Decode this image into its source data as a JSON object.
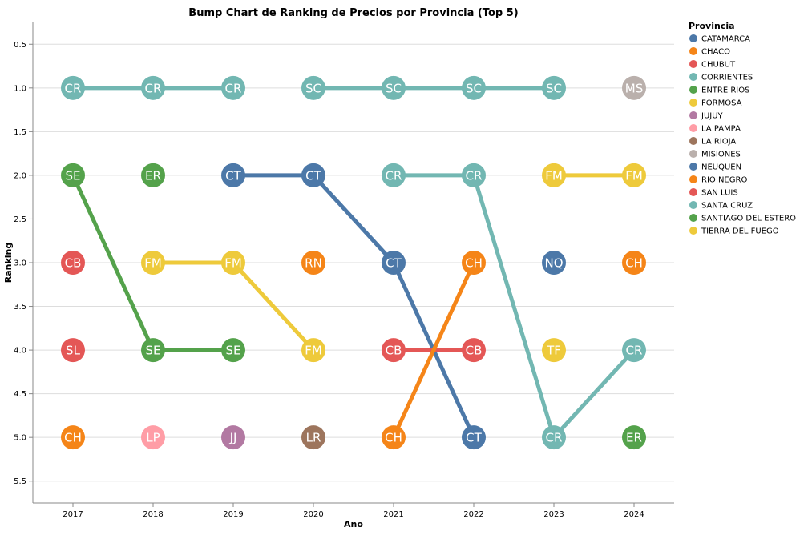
{
  "chart_data": {
    "type": "line",
    "title": "Bump Chart de Ranking de Precios por Provincia (Top 5)",
    "xlabel": "Año",
    "ylabel": "Ranking",
    "x": [
      "2017",
      "2018",
      "2019",
      "2020",
      "2021",
      "2022",
      "2023",
      "2024"
    ],
    "yticks": [
      "0.5",
      "1.0",
      "1.5",
      "2.0",
      "2.5",
      "3.0",
      "3.5",
      "4.0",
      "4.5",
      "5.0",
      "5.5"
    ],
    "ylim": [
      0.25,
      5.75
    ],
    "y_reversed": true,
    "grid": true,
    "legend": {
      "title": "Provincia",
      "placement": "right",
      "items": [
        {
          "name": "CATAMARCA",
          "color": "#4c78a8"
        },
        {
          "name": "CHACO",
          "color": "#f58518"
        },
        {
          "name": "CHUBUT",
          "color": "#e45756"
        },
        {
          "name": "CORRIENTES",
          "color": "#72b7b2"
        },
        {
          "name": "ENTRE RIOS",
          "color": "#54a24b"
        },
        {
          "name": "FORMOSA",
          "color": "#eeca3b"
        },
        {
          "name": "JUJUY",
          "color": "#b279a2"
        },
        {
          "name": "LA PAMPA",
          "color": "#ff9da6"
        },
        {
          "name": "LA RIOJA",
          "color": "#9d755d"
        },
        {
          "name": "MISIONES",
          "color": "#bab0ac"
        },
        {
          "name": "NEUQUEN",
          "color": "#4c78a8"
        },
        {
          "name": "RIO NEGRO",
          "color": "#f58518"
        },
        {
          "name": "SAN LUIS",
          "color": "#e45756"
        },
        {
          "name": "SANTA CRUZ",
          "color": "#72b7b2"
        },
        {
          "name": "SANTIAGO DEL ESTERO",
          "color": "#54a24b"
        },
        {
          "name": "TIERRA DEL FUEGO",
          "color": "#eeca3b"
        }
      ]
    },
    "points": [
      {
        "x": "2017",
        "rank": 1,
        "label": "CR",
        "color": "#72b7b2"
      },
      {
        "x": "2017",
        "rank": 2,
        "label": "SE",
        "color": "#54a24b"
      },
      {
        "x": "2017",
        "rank": 3,
        "label": "CB",
        "color": "#e45756"
      },
      {
        "x": "2017",
        "rank": 4,
        "label": "SL",
        "color": "#e45756"
      },
      {
        "x": "2017",
        "rank": 5,
        "label": "CH",
        "color": "#f58518"
      },
      {
        "x": "2018",
        "rank": 1,
        "label": "CR",
        "color": "#72b7b2"
      },
      {
        "x": "2018",
        "rank": 2,
        "label": "ER",
        "color": "#54a24b"
      },
      {
        "x": "2018",
        "rank": 3,
        "label": "FM",
        "color": "#eeca3b"
      },
      {
        "x": "2018",
        "rank": 4,
        "label": "SE",
        "color": "#54a24b"
      },
      {
        "x": "2018",
        "rank": 5,
        "label": "LP",
        "color": "#ff9da6"
      },
      {
        "x": "2019",
        "rank": 1,
        "label": "CR",
        "color": "#72b7b2"
      },
      {
        "x": "2019",
        "rank": 2,
        "label": "CT",
        "color": "#4c78a8"
      },
      {
        "x": "2019",
        "rank": 3,
        "label": "FM",
        "color": "#eeca3b"
      },
      {
        "x": "2019",
        "rank": 4,
        "label": "SE",
        "color": "#54a24b"
      },
      {
        "x": "2019",
        "rank": 5,
        "label": "JJ",
        "color": "#b279a2"
      },
      {
        "x": "2020",
        "rank": 1,
        "label": "SC",
        "color": "#72b7b2"
      },
      {
        "x": "2020",
        "rank": 2,
        "label": "CT",
        "color": "#4c78a8"
      },
      {
        "x": "2020",
        "rank": 3,
        "label": "RN",
        "color": "#f58518"
      },
      {
        "x": "2020",
        "rank": 4,
        "label": "FM",
        "color": "#eeca3b"
      },
      {
        "x": "2020",
        "rank": 5,
        "label": "LR",
        "color": "#9d755d"
      },
      {
        "x": "2021",
        "rank": 1,
        "label": "SC",
        "color": "#72b7b2"
      },
      {
        "x": "2021",
        "rank": 2,
        "label": "CR",
        "color": "#72b7b2"
      },
      {
        "x": "2021",
        "rank": 3,
        "label": "CT",
        "color": "#4c78a8"
      },
      {
        "x": "2021",
        "rank": 4,
        "label": "CB",
        "color": "#e45756"
      },
      {
        "x": "2021",
        "rank": 5,
        "label": "CH",
        "color": "#f58518"
      },
      {
        "x": "2022",
        "rank": 1,
        "label": "SC",
        "color": "#72b7b2"
      },
      {
        "x": "2022",
        "rank": 2,
        "label": "CR",
        "color": "#72b7b2"
      },
      {
        "x": "2022",
        "rank": 3,
        "label": "CH",
        "color": "#f58518"
      },
      {
        "x": "2022",
        "rank": 4,
        "label": "CB",
        "color": "#e45756"
      },
      {
        "x": "2022",
        "rank": 5,
        "label": "CT",
        "color": "#4c78a8"
      },
      {
        "x": "2023",
        "rank": 1,
        "label": "SC",
        "color": "#72b7b2"
      },
      {
        "x": "2023",
        "rank": 2,
        "label": "FM",
        "color": "#eeca3b"
      },
      {
        "x": "2023",
        "rank": 3,
        "label": "NQ",
        "color": "#4c78a8"
      },
      {
        "x": "2023",
        "rank": 4,
        "label": "TF",
        "color": "#eeca3b"
      },
      {
        "x": "2023",
        "rank": 5,
        "label": "CR",
        "color": "#72b7b2"
      },
      {
        "x": "2024",
        "rank": 1,
        "label": "MS",
        "color": "#bab0ac"
      },
      {
        "x": "2024",
        "rank": 2,
        "label": "FM",
        "color": "#eeca3b"
      },
      {
        "x": "2024",
        "rank": 3,
        "label": "CH",
        "color": "#f58518"
      },
      {
        "x": "2024",
        "rank": 4,
        "label": "CR",
        "color": "#72b7b2"
      },
      {
        "x": "2024",
        "rank": 5,
        "label": "ER",
        "color": "#54a24b"
      }
    ],
    "lines": [
      {
        "province": "CORRIENTES",
        "color": "#72b7b2",
        "path": [
          {
            "x": "2017",
            "rank": 1
          },
          {
            "x": "2018",
            "rank": 1
          },
          {
            "x": "2019",
            "rank": 1
          }
        ]
      },
      {
        "province": "SANTA CRUZ",
        "color": "#72b7b2",
        "path": [
          {
            "x": "2020",
            "rank": 1
          },
          {
            "x": "2021",
            "rank": 1
          },
          {
            "x": "2022",
            "rank": 1
          },
          {
            "x": "2023",
            "rank": 1
          }
        ]
      },
      {
        "province": "SANTIAGO DEL ESTERO",
        "color": "#54a24b",
        "path": [
          {
            "x": "2017",
            "rank": 2
          },
          {
            "x": "2018",
            "rank": 4
          },
          {
            "x": "2019",
            "rank": 4
          }
        ]
      },
      {
        "province": "FORMOSA",
        "color": "#eeca3b",
        "path": [
          {
            "x": "2018",
            "rank": 3
          },
          {
            "x": "2019",
            "rank": 3
          },
          {
            "x": "2020",
            "rank": 4
          }
        ]
      },
      {
        "province": "CATAMARCA",
        "color": "#4c78a8",
        "path": [
          {
            "x": "2019",
            "rank": 2
          },
          {
            "x": "2020",
            "rank": 2
          },
          {
            "x": "2021",
            "rank": 3
          },
          {
            "x": "2022",
            "rank": 5
          }
        ]
      },
      {
        "province": "CORRIENTES",
        "color": "#72b7b2",
        "path": [
          {
            "x": "2021",
            "rank": 2
          },
          {
            "x": "2022",
            "rank": 2
          },
          {
            "x": "2023",
            "rank": 5
          },
          {
            "x": "2024",
            "rank": 4
          }
        ]
      },
      {
        "province": "CHUBUT",
        "color": "#e45756",
        "path": [
          {
            "x": "2021",
            "rank": 4
          },
          {
            "x": "2022",
            "rank": 4
          }
        ]
      },
      {
        "province": "CHACO",
        "color": "#f58518",
        "path": [
          {
            "x": "2021",
            "rank": 5
          },
          {
            "x": "2022",
            "rank": 3
          }
        ]
      },
      {
        "province": "FORMOSA",
        "color": "#eeca3b",
        "path": [
          {
            "x": "2023",
            "rank": 2
          },
          {
            "x": "2024",
            "rank": 2
          }
        ]
      }
    ]
  }
}
